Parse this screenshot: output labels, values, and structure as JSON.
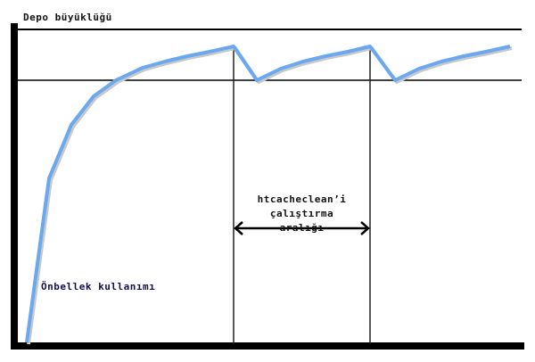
{
  "diagram": {
    "y_label": "Depo büyüklüğü",
    "curve_label": "Önbellek kullanımı",
    "interval_label": [
      "htcacheclean’i",
      "çalıştırma",
      "aralığı"
    ],
    "colors": {
      "curve": "#6aa8f0",
      "lines": "#000000",
      "label_curve": "#101050"
    }
  }
}
